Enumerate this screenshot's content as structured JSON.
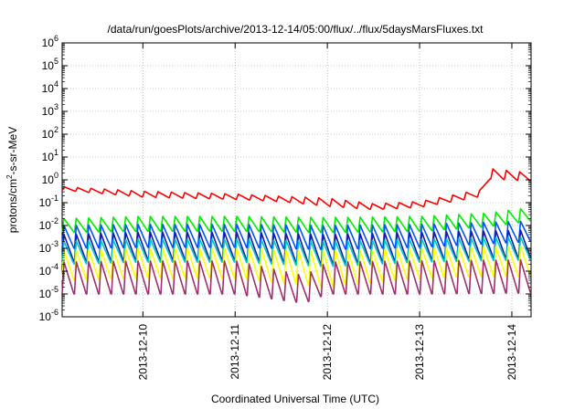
{
  "chart_data": {
    "type": "line",
    "title": "/data/run/goesPlots/archive/2013-12-14/05:00/flux/../flux/5daysMarsFluxes.txt",
    "xlabel": "Coordinated Universal Time (UTC)",
    "ylabel": {
      "main": "protons/cm",
      "sup": "2",
      "rest": "-s-sr-MeV"
    },
    "y_scale": "log",
    "ylim_exponent": [
      -6,
      6
    ],
    "y_ticks": [
      {
        "base": "10",
        "exp": "6"
      },
      {
        "base": "10",
        "exp": "5"
      },
      {
        "base": "10",
        "exp": "4"
      },
      {
        "base": "10",
        "exp": "3"
      },
      {
        "base": "10",
        "exp": "2"
      },
      {
        "base": "10",
        "exp": "1"
      },
      {
        "base": "10",
        "exp": "0"
      },
      {
        "base": "10",
        "exp": "-1"
      },
      {
        "base": "10",
        "exp": "-2"
      },
      {
        "base": "10",
        "exp": "-3"
      },
      {
        "base": "10",
        "exp": "-4"
      },
      {
        "base": "10",
        "exp": "-5"
      },
      {
        "base": "10",
        "exp": "-6"
      }
    ],
    "x_ticks": [
      "2013-12-10",
      "2013-12-11",
      "2013-12-12",
      "2013-12-13",
      "2013-12-14"
    ],
    "x_range_days": [
      "2013-12-09 03:00",
      "2013-12-14 05:00"
    ],
    "grid": true,
    "series": [
      {
        "color": "#ff0000",
        "teeth": 35,
        "x_days": [
          "2013-12-09 03:00",
          "2013-12-10 00:00",
          "2013-12-11 00:00",
          "2013-12-11 12:00",
          "2013-12-12 00:00",
          "2013-12-12 12:00",
          "2013-12-13 00:00",
          "2013-12-13 12:00",
          "2013-12-13 16:30",
          "2013-12-13 18:00",
          "2013-12-14 05:00"
        ],
        "log_hi": [
          -0.3,
          -0.5,
          -0.62,
          -0.72,
          -0.8,
          -1.05,
          -0.95,
          -0.55,
          -0.45,
          0.5,
          0.3
        ],
        "log_lo": [
          -0.45,
          -0.75,
          -0.85,
          -0.95,
          -1.15,
          -1.3,
          -1.2,
          -0.85,
          -0.7,
          0.05,
          -0.05
        ]
      },
      {
        "color": "#00ee00",
        "teeth": 38,
        "x_days": [
          "2013-12-09 03:00",
          "2013-12-10 00:00",
          "2013-12-11 00:00",
          "2013-12-12 00:00",
          "2013-12-13 00:00",
          "2013-12-13 18:00",
          "2013-12-14 05:00"
        ],
        "log_hi": [
          -1.7,
          -1.6,
          -1.6,
          -1.65,
          -1.6,
          -1.45,
          -1.2
        ],
        "log_lo": [
          -2.3,
          -2.25,
          -2.25,
          -2.3,
          -2.25,
          -2.05,
          -1.8
        ]
      },
      {
        "color": "#0055ff",
        "teeth": 38,
        "x_days": [
          "2013-12-09 03:00",
          "2013-12-10 00:00",
          "2013-12-11 00:00",
          "2013-12-12 00:00",
          "2013-12-13 00:00",
          "2013-12-14 05:00"
        ],
        "log_hi": [
          -2.0,
          -1.95,
          -1.95,
          -2.0,
          -1.95,
          -1.8
        ],
        "log_lo": [
          -3.0,
          -2.95,
          -2.95,
          -3.05,
          -2.95,
          -2.7
        ]
      },
      {
        "color": "#1a1aa0",
        "teeth": 38,
        "x_days": [
          "2013-12-09 03:00",
          "2013-12-10 00:00",
          "2013-12-11 00:00",
          "2013-12-12 00:00",
          "2013-12-13 00:00",
          "2013-12-14 05:00"
        ],
        "log_hi": [
          -2.4,
          -2.3,
          -2.3,
          -2.4,
          -2.3,
          -2.2
        ],
        "log_lo": [
          -3.6,
          -3.5,
          -3.5,
          -3.7,
          -3.5,
          -3.4
        ]
      },
      {
        "color": "#00c8c8",
        "teeth": 38,
        "x_days": [
          "2013-12-09 03:00",
          "2013-12-10 00:00",
          "2013-12-11 00:00",
          "2013-12-12 00:00",
          "2013-12-13 00:00",
          "2013-12-14 05:00"
        ],
        "log_hi": [
          -2.7,
          -2.6,
          -2.6,
          -2.7,
          -2.6,
          -2.5
        ],
        "log_lo": [
          -3.7,
          -3.6,
          -3.6,
          -3.8,
          -3.6,
          -3.5
        ]
      },
      {
        "color": "#ffff00",
        "teeth": 38,
        "x_days": [
          "2013-12-09 03:00",
          "2013-12-10 00:00",
          "2013-12-11 00:00",
          "2013-12-12 00:00",
          "2013-12-13 00:00",
          "2013-12-14 05:00"
        ],
        "log_hi": [
          -3.1,
          -3.0,
          -3.0,
          -3.1,
          -3.0,
          -2.9
        ],
        "log_lo": [
          -4.4,
          -4.3,
          -4.3,
          -4.7,
          -4.3,
          -4.2
        ]
      },
      {
        "color": "#a03070",
        "teeth": 38,
        "x_days": [
          "2013-12-09 03:00",
          "2013-12-10 00:00",
          "2013-12-11 00:00",
          "2013-12-11 18:00",
          "2013-12-12 00:00",
          "2013-12-13 00:00",
          "2013-12-14 05:00"
        ],
        "log_hi": [
          -3.6,
          -3.55,
          -3.55,
          -4.2,
          -3.6,
          -3.55,
          -3.5
        ],
        "log_lo": [
          -5.0,
          -5.0,
          -5.0,
          -5.4,
          -5.0,
          -5.0,
          -4.95
        ]
      }
    ]
  }
}
